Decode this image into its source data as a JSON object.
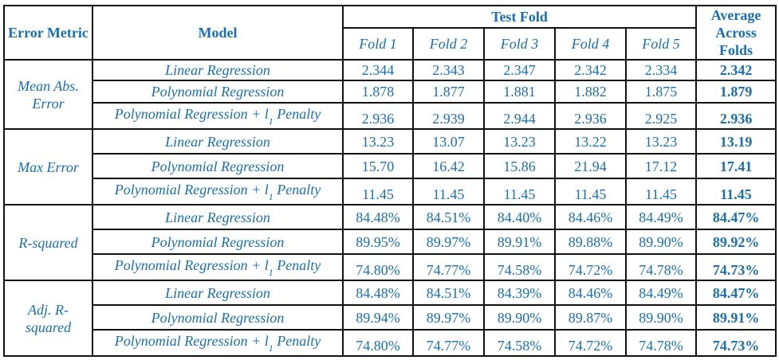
{
  "header": {
    "error_metric": "Error Metric",
    "model": "Model",
    "test_fold": "Test Fold",
    "average": "Average Across Folds",
    "folds": [
      "Fold 1",
      "Fold 2",
      "Fold 3",
      "Fold 4",
      "Fold 5"
    ]
  },
  "models": {
    "linear": "Linear Regression",
    "poly": "Polynomial Regression",
    "poly_l1_prefix": "Polynomial Regression + ",
    "poly_l1_l": "l",
    "poly_l1_sub": "1",
    "poly_l1_suffix": " Penalty"
  },
  "groups": [
    {
      "metric": "Mean Abs. Error",
      "rows": [
        {
          "values": [
            "2.344",
            "2.343",
            "2.347",
            "2.342",
            "2.334"
          ],
          "avg": "2.342"
        },
        {
          "values": [
            "1.878",
            "1.877",
            "1.881",
            "1.882",
            "1.875"
          ],
          "avg": "1.879"
        },
        {
          "values": [
            "2.936",
            "2.939",
            "2.944",
            "2.936",
            "2.925"
          ],
          "avg": "2.936"
        }
      ]
    },
    {
      "metric": "Max Error",
      "rows": [
        {
          "values": [
            "13.23",
            "13.07",
            "13.23",
            "13.22",
            "13.23"
          ],
          "avg": "13.19"
        },
        {
          "values": [
            "15.70",
            "16.42",
            "15.86",
            "21.94",
            "17.12"
          ],
          "avg": "17.41"
        },
        {
          "values": [
            "11.45",
            "11.45",
            "11.45",
            "11.45",
            "11.45"
          ],
          "avg": "11.45"
        }
      ]
    },
    {
      "metric": "R-squared",
      "rows": [
        {
          "values": [
            "84.48%",
            "84.51%",
            "84.40%",
            "84.46%",
            "84.49%"
          ],
          "avg": "84.47%"
        },
        {
          "values": [
            "89.95%",
            "89.97%",
            "89.91%",
            "89.88%",
            "89.90%"
          ],
          "avg": "89.92%"
        },
        {
          "values": [
            "74.80%",
            "74.77%",
            "74.58%",
            "74.72%",
            "74.78%"
          ],
          "avg": "74.73%"
        }
      ]
    },
    {
      "metric": "Adj. R-squared",
      "rows": [
        {
          "values": [
            "84.48%",
            "84.51%",
            "84.39%",
            "84.46%",
            "84.49%"
          ],
          "avg": "84.47%"
        },
        {
          "values": [
            "89.94%",
            "89.97%",
            "89.90%",
            "89.87%",
            "89.90%"
          ],
          "avg": "89.91%"
        },
        {
          "values": [
            "74.80%",
            "74.77%",
            "74.58%",
            "74.72%",
            "74.78%"
          ],
          "avg": "74.73%"
        }
      ]
    }
  ]
}
